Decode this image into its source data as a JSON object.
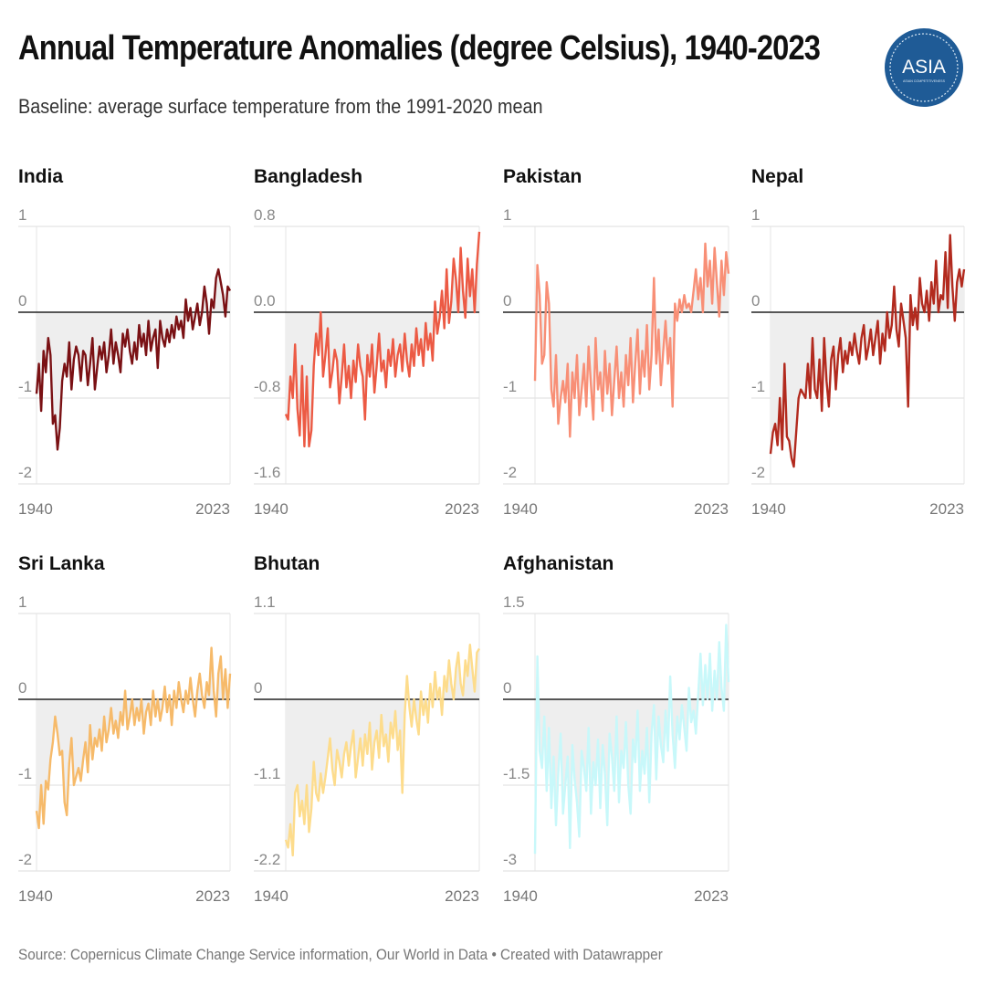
{
  "header": {
    "title": "Annual Temperature Anomalies (degree Celsius), 1940-2023",
    "subtitle": "Baseline: average surface temperature from the 1991-2020 mean",
    "logo_text": "ASIA",
    "logo_subtext": "ASIAN COMPETITIVENESS"
  },
  "footer": {
    "source": "Source: Copernicus Climate Change Service information, Our World in Data • Created with Datawrapper"
  },
  "colors": {
    "baseline": "#222222",
    "fill": "#eeeeee",
    "grid": "#dddddd"
  },
  "chart_data": [
    {
      "type": "line",
      "title": "India",
      "color": "#7a1114",
      "x_start": 1940,
      "x_end": 2023,
      "xticks": [
        "1940",
        "2023"
      ],
      "ylim": [
        -2,
        1
      ],
      "yticks": [
        {
          "v": 1,
          "label": "1"
        },
        {
          "v": 0,
          "label": "0"
        },
        {
          "v": -1,
          "label": "-1"
        },
        {
          "v": -2,
          "label": "-2"
        }
      ],
      "values": [
        -0.95,
        -0.6,
        -1.15,
        -0.45,
        -0.7,
        -0.3,
        -0.5,
        -1.3,
        -1.2,
        -1.6,
        -1.35,
        -0.8,
        -0.6,
        -0.75,
        -0.35,
        -0.9,
        -0.55,
        -0.4,
        -0.5,
        -0.8,
        -0.45,
        -0.5,
        -0.85,
        -0.6,
        -0.3,
        -0.9,
        -0.65,
        -0.4,
        -0.55,
        -0.35,
        -0.7,
        -0.5,
        -0.2,
        -0.6,
        -0.35,
        -0.5,
        -0.7,
        -0.25,
        -0.4,
        -0.2,
        -0.45,
        -0.6,
        -0.35,
        -0.55,
        -0.15,
        -0.4,
        -0.25,
        -0.5,
        -0.1,
        -0.45,
        -0.3,
        -0.2,
        -0.65,
        -0.1,
        -0.3,
        -0.4,
        -0.2,
        -0.35,
        -0.15,
        -0.3,
        -0.05,
        -0.2,
        -0.1,
        -0.3,
        0.15,
        -0.1,
        0.05,
        -0.2,
        -0.05,
        0.1,
        -0.15,
        0.0,
        0.3,
        0.1,
        -0.25,
        0.15,
        0.05,
        0.4,
        0.5,
        0.35,
        0.2,
        -0.05,
        0.3,
        0.25
      ]
    },
    {
      "type": "line",
      "title": "Bangladesh",
      "color": "#ec5a44",
      "x_start": 1940,
      "x_end": 2023,
      "xticks": [
        "1940",
        "2023"
      ],
      "ylim": [
        -1.6,
        0.8
      ],
      "yticks": [
        {
          "v": 0.8,
          "label": "0.8"
        },
        {
          "v": 0,
          "label": "0.0"
        },
        {
          "v": -0.8,
          "label": "-0.8"
        },
        {
          "v": -1.6,
          "label": "-1.6"
        }
      ],
      "values": [
        -0.95,
        -1.0,
        -0.6,
        -0.8,
        -0.3,
        -0.9,
        -1.15,
        -0.5,
        -1.25,
        -0.6,
        -1.25,
        -1.1,
        -0.5,
        -0.2,
        -0.4,
        0.0,
        -0.6,
        -0.4,
        -0.15,
        -0.7,
        -0.55,
        -0.35,
        -0.45,
        -0.85,
        -0.6,
        -0.3,
        -0.7,
        -0.5,
        -0.8,
        -0.45,
        -0.65,
        -0.3,
        -0.5,
        -0.6,
        -1.0,
        -0.4,
        -0.6,
        -0.3,
        -0.75,
        -0.5,
        -0.2,
        -0.55,
        -0.45,
        -0.7,
        -0.35,
        -0.5,
        -0.25,
        -0.6,
        -0.4,
        -0.3,
        -0.55,
        -0.2,
        -0.45,
        -0.6,
        -0.3,
        -0.5,
        -0.15,
        -0.4,
        -0.25,
        -0.5,
        -0.1,
        -0.35,
        -0.2,
        -0.45,
        0.1,
        -0.2,
        -0.05,
        0.2,
        -0.15,
        0.4,
        -0.1,
        0.1,
        0.5,
        0.3,
        0.0,
        0.6,
        0.2,
        -0.05,
        0.5,
        0.15,
        0.4,
        0.0,
        0.45,
        0.75
      ]
    },
    {
      "type": "line",
      "title": "Pakistan",
      "color": "#f88f76",
      "x_start": 1940,
      "x_end": 2023,
      "xticks": [
        "1940",
        "2023"
      ],
      "ylim": [
        -2,
        1
      ],
      "yticks": [
        {
          "v": 1,
          "label": "1"
        },
        {
          "v": 0,
          "label": "0"
        },
        {
          "v": -1,
          "label": "-1"
        },
        {
          "v": -2,
          "label": "-2"
        }
      ],
      "values": [
        -0.8,
        0.55,
        0.2,
        -0.6,
        -0.5,
        0.35,
        0.1,
        -0.9,
        -1.1,
        -0.5,
        -1.3,
        -1.0,
        -0.8,
        -1.05,
        -0.6,
        -1.45,
        -0.7,
        -1.0,
        -0.5,
        -1.2,
        -0.9,
        -0.6,
        -1.1,
        -0.4,
        -0.85,
        -1.25,
        -0.3,
        -0.9,
        -0.7,
        -1.15,
        -0.45,
        -0.95,
        -0.6,
        -1.2,
        -0.8,
        -0.4,
        -1.0,
        -0.7,
        -1.1,
        -0.5,
        -0.85,
        -0.3,
        -1.05,
        -0.6,
        -0.2,
        -0.95,
        -0.45,
        -0.75,
        -0.15,
        -0.9,
        -0.5,
        0.4,
        -0.6,
        -0.2,
        -0.85,
        -0.45,
        -0.1,
        -0.6,
        -0.3,
        -1.1,
        0.1,
        -0.1,
        0.15,
        0.0,
        0.2,
        0.05,
        0.1,
        0.0,
        0.25,
        0.5,
        0.15,
        0.4,
        0.0,
        0.8,
        0.3,
        0.6,
        0.1,
        0.75,
        0.35,
        -0.05,
        0.6,
        0.2,
        0.7,
        0.45
      ]
    },
    {
      "type": "line",
      "title": "Nepal",
      "color": "#b22a1e",
      "x_start": 1940,
      "x_end": 2023,
      "xticks": [
        "1940",
        "2023"
      ],
      "ylim": [
        -2,
        1
      ],
      "yticks": [
        {
          "v": 1,
          "label": "1"
        },
        {
          "v": 0,
          "label": "0"
        },
        {
          "v": -1,
          "label": "-1"
        },
        {
          "v": -2,
          "label": "-2"
        }
      ],
      "values": [
        -1.65,
        -1.4,
        -1.3,
        -1.55,
        -1.0,
        -1.6,
        -0.6,
        -1.45,
        -1.5,
        -1.7,
        -1.8,
        -1.4,
        -1.0,
        -0.9,
        -0.95,
        -1.0,
        -0.6,
        -1.0,
        -0.3,
        -0.9,
        -1.0,
        -0.55,
        -1.15,
        -0.3,
        -0.8,
        -1.1,
        -0.55,
        -0.4,
        -0.9,
        -0.5,
        -0.3,
        -0.7,
        -0.45,
        -0.6,
        -0.35,
        -0.5,
        -0.25,
        -0.45,
        -0.6,
        -0.3,
        -0.15,
        -0.55,
        -0.4,
        -0.2,
        -0.5,
        -0.3,
        -0.1,
        -0.6,
        -0.25,
        -0.45,
        0.0,
        -0.3,
        -0.15,
        0.3,
        -0.2,
        -0.4,
        0.1,
        -0.1,
        -0.3,
        -1.1,
        0.2,
        -0.15,
        0.05,
        -0.2,
        0.4,
        0.1,
        0.0,
        0.25,
        -0.1,
        0.35,
        0.1,
        0.6,
        0.0,
        0.2,
        0.15,
        0.7,
        0.05,
        0.9,
        0.3,
        -0.1,
        0.35,
        0.5,
        0.3,
        0.5
      ]
    },
    {
      "type": "line",
      "title": "Sri Lanka",
      "color": "#f6ba6a",
      "x_start": 1940,
      "x_end": 2023,
      "xticks": [
        "1940",
        "2023"
      ],
      "ylim": [
        -2,
        1
      ],
      "yticks": [
        {
          "v": 1,
          "label": "1"
        },
        {
          "v": 0,
          "label": "0"
        },
        {
          "v": -1,
          "label": "-1"
        },
        {
          "v": -2,
          "label": "-2"
        }
      ],
      "values": [
        -1.3,
        -1.5,
        -1.0,
        -1.45,
        -0.95,
        -1.05,
        -0.7,
        -0.5,
        -0.2,
        -0.4,
        -0.65,
        -0.6,
        -1.2,
        -1.35,
        -0.75,
        -0.45,
        -1.0,
        -0.9,
        -0.8,
        -0.95,
        -0.7,
        -0.5,
        -0.85,
        -0.3,
        -0.7,
        -0.45,
        -0.55,
        -0.35,
        -0.6,
        -0.2,
        -0.5,
        -0.35,
        -0.1,
        -0.4,
        -0.25,
        -0.45,
        -0.15,
        -0.3,
        0.1,
        -0.35,
        -0.2,
        0.0,
        -0.3,
        -0.1,
        -0.25,
        0.0,
        -0.4,
        -0.15,
        -0.05,
        -0.3,
        0.1,
        -0.2,
        0.0,
        -0.25,
        -0.1,
        0.15,
        -0.15,
        0.05,
        -0.3,
        0.1,
        -0.1,
        0.2,
        0.0,
        -0.15,
        0.1,
        -0.05,
        0.25,
        0.0,
        -0.2,
        0.1,
        0.3,
        0.05,
        -0.1,
        0.2,
        0.05,
        0.6,
        0.1,
        -0.2,
        0.3,
        0.5,
        0.0,
        0.35,
        -0.1,
        0.3
      ]
    },
    {
      "type": "line",
      "title": "Bhutan",
      "color": "#fddc8c",
      "x_start": 1940,
      "x_end": 2023,
      "xticks": [
        "1940",
        "2023"
      ],
      "ylim": [
        -2.2,
        1.1
      ],
      "yticks": [
        {
          "v": 1.1,
          "label": "1.1"
        },
        {
          "v": 0,
          "label": "0"
        },
        {
          "v": -1.1,
          "label": "-1.1"
        },
        {
          "v": -2.2,
          "label": "-2.2"
        }
      ],
      "values": [
        -1.8,
        -1.9,
        -1.6,
        -2.0,
        -1.2,
        -1.1,
        -1.5,
        -1.3,
        -1.6,
        -1.1,
        -1.7,
        -1.4,
        -0.8,
        -1.2,
        -1.3,
        -0.95,
        -1.2,
        -1.0,
        -0.75,
        -0.5,
        -0.9,
        -1.1,
        -0.65,
        -0.8,
        -1.0,
        -0.7,
        -0.55,
        -0.85,
        -0.6,
        -0.4,
        -1.0,
        -0.75,
        -0.5,
        -0.85,
        -0.45,
        -0.7,
        -0.3,
        -0.9,
        -0.55,
        -0.4,
        -0.75,
        -0.2,
        -0.6,
        -0.45,
        -0.8,
        -0.3,
        -0.5,
        -0.15,
        -0.65,
        -0.4,
        -1.2,
        -0.2,
        0.3,
        -0.1,
        -0.35,
        0.0,
        -0.25,
        -0.45,
        0.1,
        -0.2,
        0.0,
        -0.3,
        0.2,
        -0.1,
        0.35,
        0.0,
        0.15,
        -0.2,
        0.3,
        0.1,
        0.5,
        0.2,
        0.0,
        0.4,
        0.6,
        0.2,
        0.05,
        0.5,
        0.3,
        0.7,
        0.4,
        0.1,
        0.6,
        0.65
      ]
    },
    {
      "type": "line",
      "title": "Afghanistan",
      "color": "#c8f8fa",
      "x_start": 1940,
      "x_end": 2023,
      "xticks": [
        "1940",
        "2023"
      ],
      "ylim": [
        -3,
        1.5
      ],
      "yticks": [
        {
          "v": 1.5,
          "label": "1.5"
        },
        {
          "v": 0,
          "label": "0"
        },
        {
          "v": -1.5,
          "label": "-1.5"
        },
        {
          "v": -3,
          "label": "-3"
        }
      ],
      "values": [
        -2.7,
        0.75,
        -0.9,
        -1.2,
        -0.3,
        -1.6,
        -0.5,
        -1.9,
        -1.0,
        -2.2,
        -1.3,
        -0.6,
        -2.0,
        -1.5,
        -1.0,
        -2.6,
        -0.8,
        -1.4,
        -1.8,
        -2.4,
        -0.9,
        -1.2,
        -1.6,
        -0.5,
        -2.0,
        -1.1,
        -1.5,
        -0.7,
        -1.9,
        -0.8,
        -1.3,
        -2.2,
        -0.6,
        -1.0,
        -1.6,
        -0.3,
        -1.8,
        -0.9,
        -1.2,
        -0.4,
        -1.5,
        -2.0,
        -0.7,
        -1.1,
        -0.2,
        -1.6,
        -0.9,
        -1.3,
        -0.5,
        -1.8,
        -0.6,
        -0.1,
        -1.4,
        -0.3,
        -0.8,
        -1.1,
        -0.2,
        -0.9,
        0.4,
        -0.6,
        -1.2,
        -0.3,
        -0.7,
        -0.1,
        -0.5,
        -0.9,
        0.2,
        -0.4,
        -0.2,
        -0.6,
        0.1,
        0.8,
        -0.1,
        0.6,
        0.0,
        0.8,
        -0.2,
        0.5,
        0.0,
        1.0,
        0.2,
        -0.2,
        1.3,
        0.3
      ]
    }
  ]
}
